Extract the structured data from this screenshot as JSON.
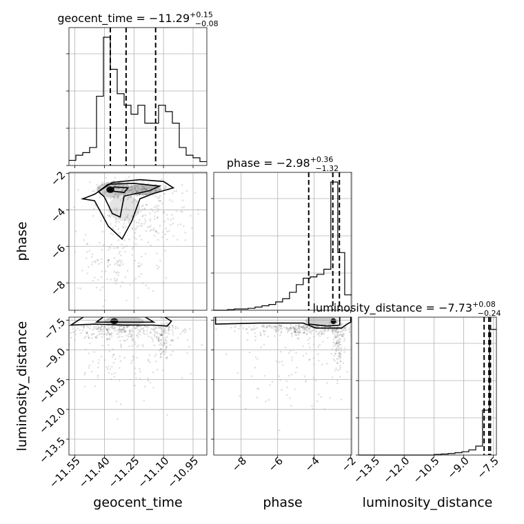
{
  "chart_data": {
    "type": "corner",
    "parameters": [
      "geocent_time",
      "phase",
      "luminosity_distance"
    ],
    "titles": [
      {
        "param": "geocent_time",
        "prefix": "geocent_time = ",
        "median": "−11.29",
        "plus": "+0.15",
        "minus": "−0.08"
      },
      {
        "param": "phase",
        "prefix": "phase = ",
        "median": "−2.98",
        "plus": "+0.36",
        "minus": "−1.32"
      },
      {
        "param": "luminosity_distance",
        "prefix": "luminosity_distance = ",
        "median": "−7.73",
        "plus": "+0.08",
        "minus": "−0.24"
      }
    ],
    "axes": {
      "geocent_time": {
        "range": [
          -11.58,
          -10.88
        ],
        "ticks": [
          -11.55,
          -11.4,
          -11.25,
          -11.1,
          -10.95
        ],
        "tick_labels": [
          "−11.55",
          "−11.40",
          "−11.25",
          "−11.10",
          "−10.95"
        ]
      },
      "phase": {
        "range": [
          -9.5,
          -1.95
        ],
        "ticks": [
          -8,
          -6,
          -4,
          -2
        ],
        "tick_labels": [
          "−8",
          "−6",
          "−4",
          "−2"
        ]
      },
      "luminosity_distance": {
        "range": [
          -14.3,
          -7.35
        ],
        "ticks": [
          -13.5,
          -12.0,
          -10.5,
          -9.0,
          -7.5
        ],
        "tick_labels": [
          "−13.5",
          "−12.0",
          "−10.5",
          "−9.0",
          "−7.5"
        ]
      }
    },
    "histograms": {
      "geocent_time": {
        "bin_edges": [
          -11.58,
          -11.545,
          -11.51,
          -11.475,
          -11.44,
          -11.405,
          -11.37,
          -11.335,
          -11.3,
          -11.265,
          -11.23,
          -11.195,
          -11.16,
          -11.125,
          -11.09,
          -11.055,
          -11.02,
          -10.985,
          -10.95,
          -10.915,
          -10.88
        ],
        "counts": [
          0.04,
          0.08,
          0.1,
          0.14,
          0.54,
          1.0,
          0.75,
          0.56,
          0.47,
          0.4,
          0.47,
          0.33,
          0.33,
          0.47,
          0.42,
          0.33,
          0.14,
          0.08,
          0.06,
          0.03
        ],
        "quantiles": [
          -11.37,
          -11.29,
          -11.14
        ]
      },
      "phase": {
        "bin_edges": [
          -9.5,
          -9.12,
          -8.75,
          -8.37,
          -7.99,
          -7.62,
          -7.24,
          -6.86,
          -6.48,
          -6.11,
          -5.73,
          -5.35,
          -4.98,
          -4.6,
          -4.22,
          -3.85,
          -3.47,
          -3.09,
          -2.71,
          -2.33,
          -1.95
        ],
        "counts": [
          0.0,
          0.0,
          0.005,
          0.01,
          0.01,
          0.015,
          0.025,
          0.035,
          0.045,
          0.065,
          0.09,
          0.14,
          0.2,
          0.25,
          0.26,
          0.28,
          0.32,
          1.0,
          0.45,
          0.12
        ],
        "quantiles": [
          -4.3,
          -2.98,
          -2.62
        ]
      },
      "luminosity_distance": {
        "bin_edges": [
          -14.3,
          -13.95,
          -13.61,
          -13.26,
          -12.91,
          -12.56,
          -12.22,
          -11.87,
          -11.52,
          -11.17,
          -10.83,
          -10.48,
          -10.13,
          -9.78,
          -9.44,
          -9.09,
          -8.74,
          -8.39,
          -8.05,
          -7.7,
          -7.35
        ],
        "counts": [
          0.0,
          0.0,
          0.0,
          0.0,
          0.0,
          0.0,
          0.0,
          0.0,
          0.0,
          0.0,
          0.0,
          0.005,
          0.008,
          0.012,
          0.018,
          0.026,
          0.04,
          0.07,
          0.35,
          0.98
        ],
        "quantiles": [
          -7.97,
          -7.73,
          -7.65
        ]
      }
    },
    "grid": true
  }
}
